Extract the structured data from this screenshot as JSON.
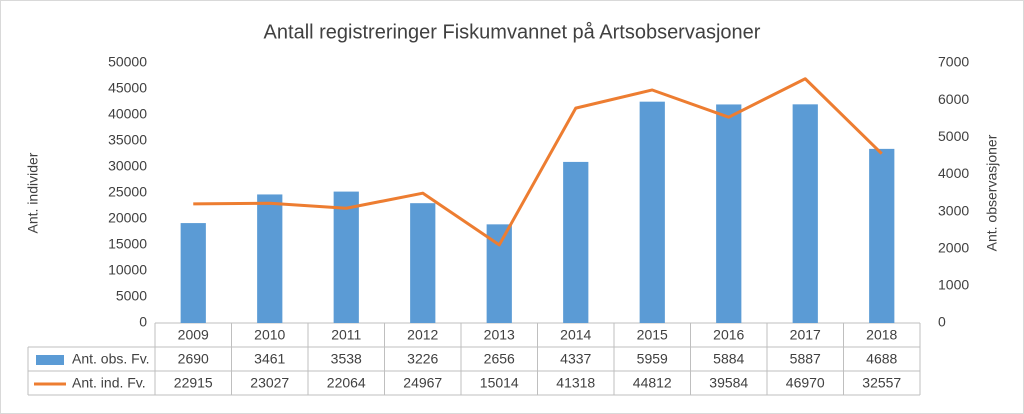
{
  "chart_data": {
    "type": "combo",
    "title": "Antall registreringer Fiskumvannet på Artsobservasjoner",
    "y_label": "Ant. individer",
    "y2_label": "Ant. observasjoner",
    "categories": [
      "2009",
      "2010",
      "2011",
      "2012",
      "2013",
      "2014",
      "2015",
      "2016",
      "2017",
      "2018"
    ],
    "series": [
      {
        "name": "Ant. obs. Fv.",
        "color": "#5b9bd5",
        "type": "bar",
        "axis": "y2",
        "values": [
          2690,
          3461,
          3538,
          3226,
          2656,
          4337,
          5959,
          5884,
          5887,
          4688
        ]
      },
      {
        "name": "Ant. ind. Fv.",
        "color": "#ed7d31",
        "type": "line",
        "values": [
          22915,
          23027,
          22064,
          24967,
          15014,
          41318,
          44812,
          39584,
          46970,
          32557
        ]
      }
    ],
    "ylim": [
      0,
      50000
    ],
    "yticks": [
      0,
      5000,
      10000,
      15000,
      20000,
      25000,
      30000,
      35000,
      40000,
      45000,
      50000
    ],
    "y2lim": [
      0,
      7000
    ],
    "y2ticks": [
      0,
      1000,
      2000,
      3000,
      4000,
      5000,
      6000,
      7000
    ]
  }
}
